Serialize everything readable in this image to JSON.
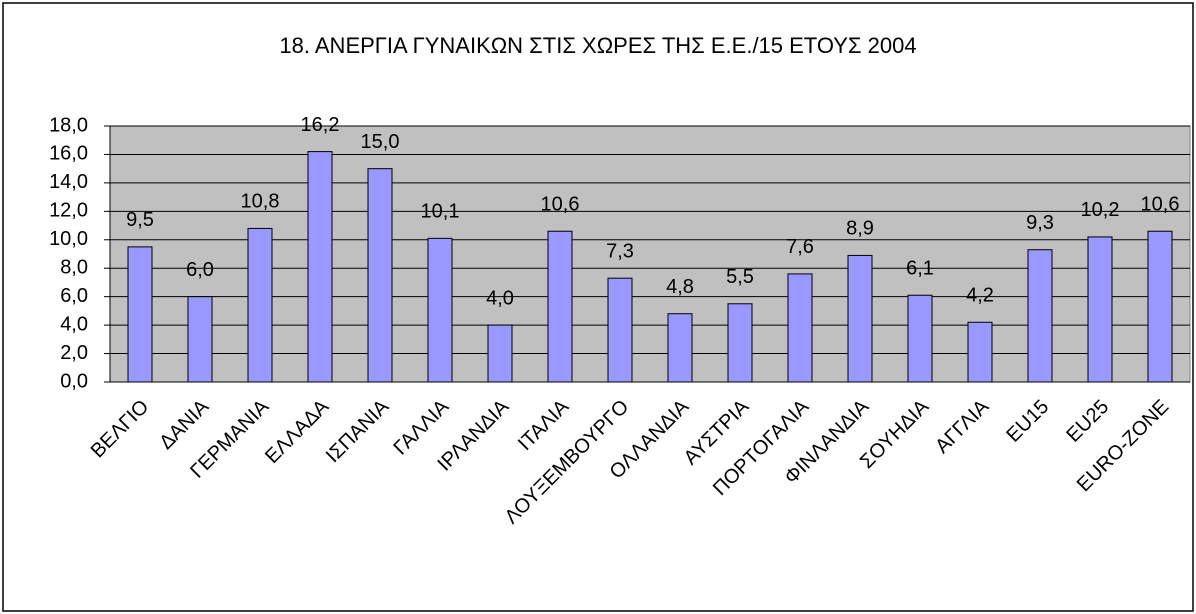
{
  "chart_data": {
    "type": "bar",
    "title": "18. ΑΝΕΡΓΙΑ ΓΥΝΑΙΚΩΝ ΣΤΙΣ ΧΩΡΕΣ ΤΗΣ Ε.Ε./15 ΕΤΟΥΣ 2004",
    "categories": [
      "ΒΕΛΓΙΟ",
      "ΔΑΝΙΑ",
      "ΓΕΡΜΑΝΙΑ",
      "ΕΛΛΑΔΑ",
      "ΙΣΠΑΝΙΑ",
      "ΓΑΛΛΙΑ",
      "ΙΡΛΑΝΔΙΑ",
      "ΙΤΑΛΙΑ",
      "ΛΟΥΞΕΜΒΟΥΡΓΟ",
      "ΟΛΛΑΝΔΙΑ",
      "ΑΥΣΤΡΙΑ",
      "ΠΟΡΤΟΓΑΛΙΑ",
      "ΦΙΝΛΑΝΔΙΑ",
      "ΣΟΥΗΔΙΑ",
      "ΑΓΓΛΙΑ",
      "EU15",
      "EU25",
      "EURO-ZONE"
    ],
    "values": [
      9.5,
      6.0,
      10.8,
      16.2,
      15.0,
      10.1,
      4.0,
      10.6,
      7.3,
      4.8,
      5.5,
      7.6,
      8.9,
      6.1,
      4.2,
      9.3,
      10.2,
      10.6
    ],
    "value_labels": [
      "9,5",
      "6,0",
      "10,8",
      "16,2",
      "15,0",
      "10,1",
      "4,0",
      "10,6",
      "7,3",
      "4,8",
      "5,5",
      "7,6",
      "8,9",
      "6,1",
      "4,2",
      "9,3",
      "10,2",
      "10,6"
    ],
    "color": "#9999ff",
    "ylim": [
      0,
      18
    ],
    "yticks": [
      {
        "value": 0,
        "label": "0,0"
      },
      {
        "value": 2,
        "label": "2,0"
      },
      {
        "value": 4,
        "label": "4,0"
      },
      {
        "value": 6,
        "label": "6,0"
      },
      {
        "value": 8,
        "label": "8,0"
      },
      {
        "value": 10,
        "label": "10,0"
      },
      {
        "value": 12,
        "label": "12,0"
      },
      {
        "value": 14,
        "label": "14,0"
      },
      {
        "value": 16,
        "label": "16,0"
      },
      {
        "value": 18,
        "label": "18,0"
      }
    ],
    "grid": true
  }
}
